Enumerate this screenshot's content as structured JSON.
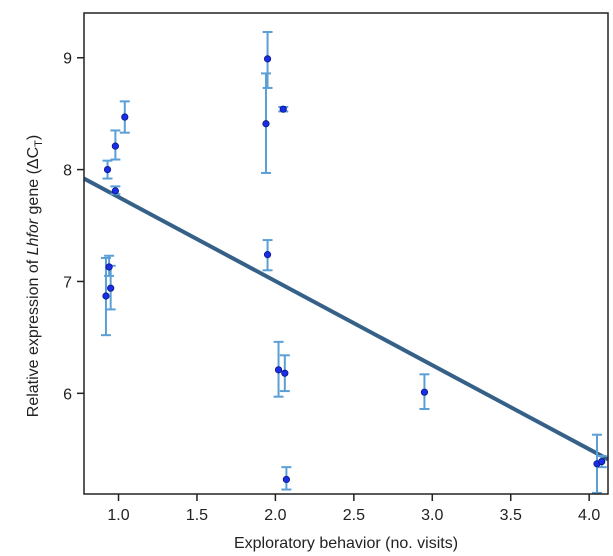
{
  "chart_data": {
    "type": "scatter",
    "xlabel": "Exploratory behavior (no. visits)",
    "ylabel": {
      "prefix": "Relative expression of ",
      "gene": "Lhfor",
      "middle": " gene (",
      "delta": "ΔC",
      "sub": "T",
      "suffix": ")"
    },
    "xlim": [
      0.78,
      4.12
    ],
    "ylim": [
      5.1,
      9.4
    ],
    "xticks": [
      1.0,
      1.5,
      2.0,
      2.5,
      3.0,
      3.5,
      4.0
    ],
    "xtick_labels": [
      "1.0",
      "1.5",
      "2.0",
      "2.5",
      "3.0",
      "3.5",
      "4.0"
    ],
    "yticks": [
      6,
      7,
      8,
      9
    ],
    "ytick_labels": [
      "6",
      "7",
      "8",
      "9"
    ],
    "grid": false,
    "points": [
      {
        "x": 0.93,
        "y": 8.0,
        "err_low": 7.92,
        "err_high": 8.08
      },
      {
        "x": 0.98,
        "y": 8.21,
        "err_low": 8.09,
        "err_high": 8.35
      },
      {
        "x": 1.04,
        "y": 8.47,
        "err_low": 8.33,
        "err_high": 8.61
      },
      {
        "x": 0.98,
        "y": 7.81,
        "err_low": 7.78,
        "err_high": 7.85
      },
      {
        "x": 0.94,
        "y": 7.13,
        "err_low": 7.05,
        "err_high": 7.23
      },
      {
        "x": 0.95,
        "y": 6.94,
        "err_low": 6.75,
        "err_high": 7.14
      },
      {
        "x": 0.92,
        "y": 6.87,
        "err_low": 6.52,
        "err_high": 7.21
      },
      {
        "x": 1.95,
        "y": 8.99,
        "err_low": 8.73,
        "err_high": 9.23
      },
      {
        "x": 1.94,
        "y": 8.41,
        "err_low": 7.97,
        "err_high": 8.86
      },
      {
        "x": 2.05,
        "y": 8.54,
        "err_low": 8.52,
        "err_high": 8.56
      },
      {
        "x": 1.95,
        "y": 7.24,
        "err_low": 7.1,
        "err_high": 7.37
      },
      {
        "x": 2.02,
        "y": 6.21,
        "err_low": 5.97,
        "err_high": 6.46
      },
      {
        "x": 2.06,
        "y": 6.18,
        "err_low": 6.02,
        "err_high": 6.34
      },
      {
        "x": 2.07,
        "y": 5.23,
        "err_low": 5.14,
        "err_high": 5.34
      },
      {
        "x": 2.95,
        "y": 6.01,
        "err_low": 5.86,
        "err_high": 6.17
      },
      {
        "x": 4.05,
        "y": 5.37,
        "err_low": 5.11,
        "err_high": 5.63
      },
      {
        "x": 4.08,
        "y": 5.39,
        "err_low": 5.34,
        "err_high": 5.44
      }
    ],
    "fit_line": {
      "x": [
        0.78,
        4.12
      ],
      "y": [
        7.92,
        5.41
      ]
    },
    "colors": {
      "point": "#1a2ee8",
      "error_bar": "#5b9fd6",
      "fit_line": "#356088",
      "axis": "#222222"
    }
  }
}
